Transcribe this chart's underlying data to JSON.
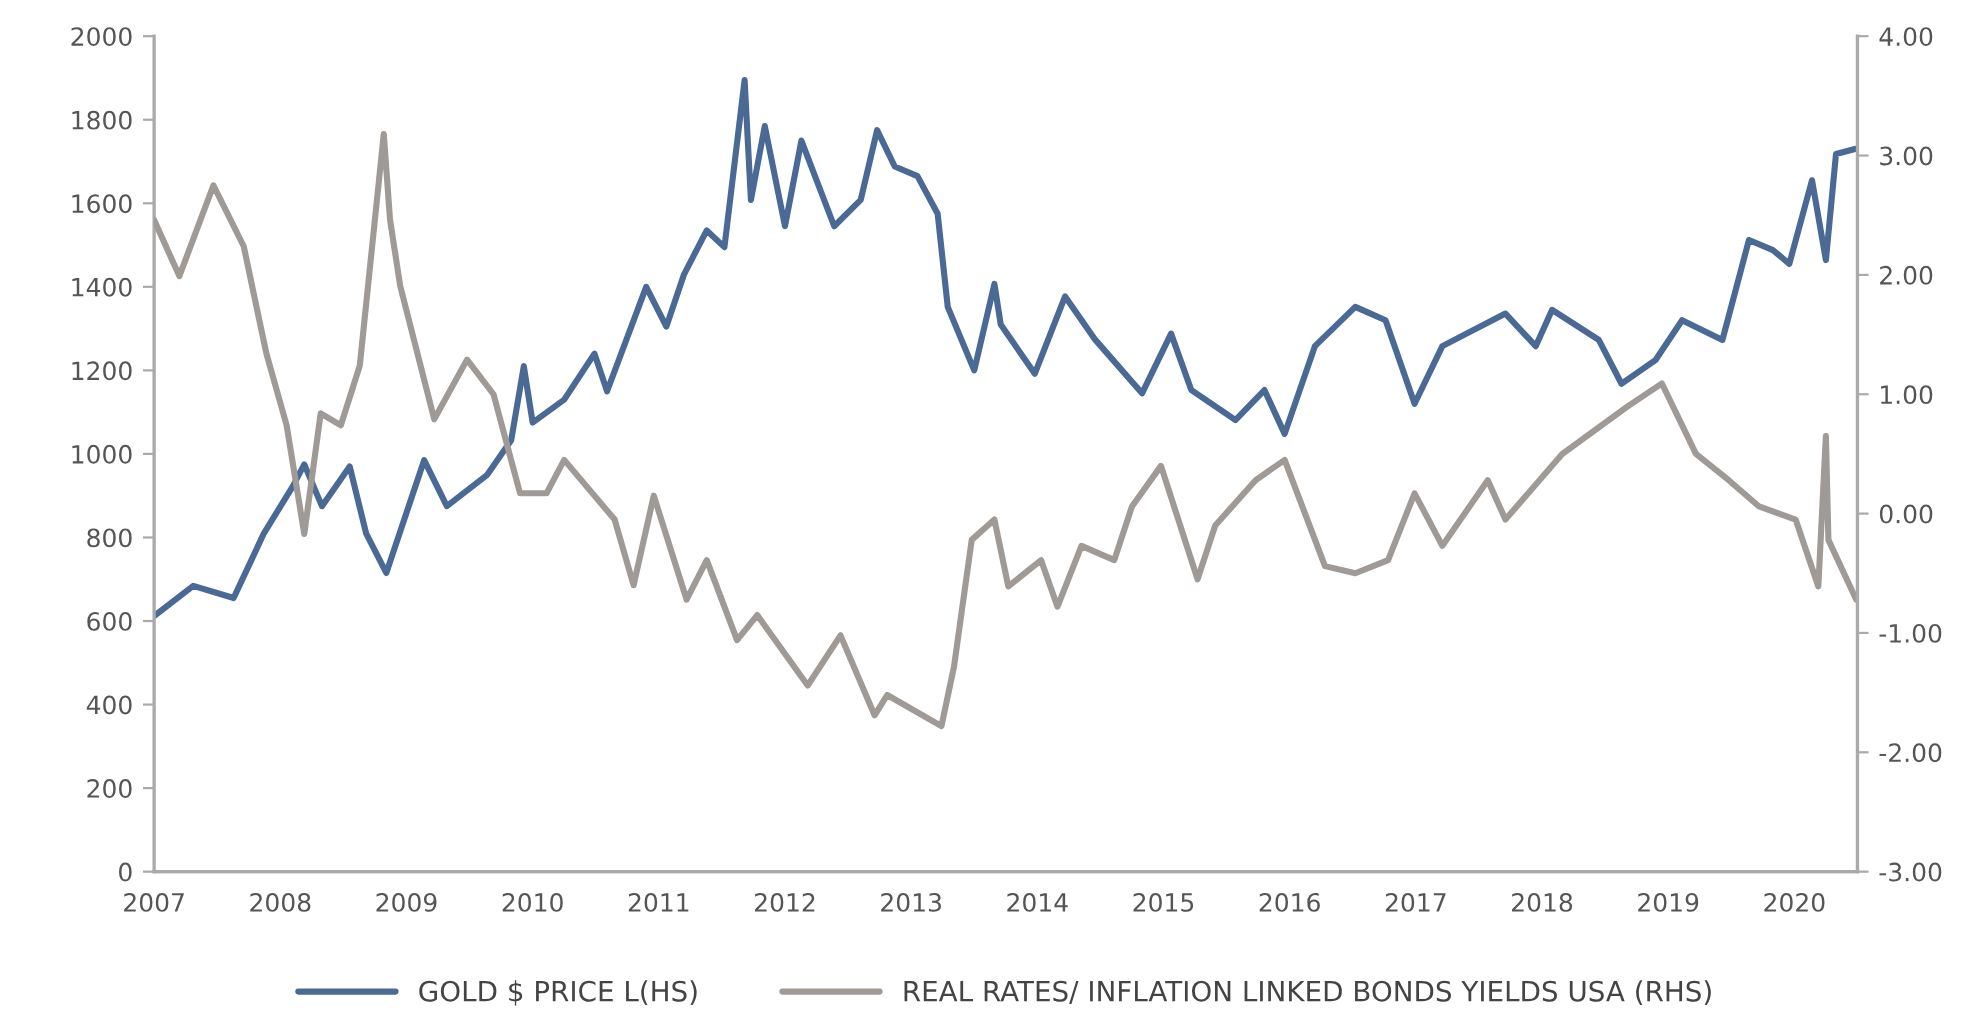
{
  "chart_data": {
    "type": "line",
    "xlim": [
      2007,
      2020.5
    ],
    "xticks": [
      2007,
      2008,
      2009,
      2010,
      2011,
      2012,
      2013,
      2014,
      2015,
      2016,
      2017,
      2018,
      2019,
      2020
    ],
    "ylim": [
      0,
      2000
    ],
    "yticks": [
      0,
      200,
      400,
      600,
      800,
      1000,
      1200,
      1400,
      1600,
      1800,
      2000
    ],
    "y2lim": [
      -3,
      4
    ],
    "y2ticks": [
      {
        "value": -3,
        "label": "-3.00"
      },
      {
        "value": -2,
        "label": "-2.00"
      },
      {
        "value": -1,
        "label": "-1.00"
      },
      {
        "value": 0,
        "label": "0.00"
      },
      {
        "value": 1,
        "label": "1.00"
      },
      {
        "value": 2,
        "label": "2.00"
      },
      {
        "value": 3,
        "label": "3.00"
      },
      {
        "value": 4,
        "label": "4.00"
      }
    ],
    "grid": false,
    "legend": "bottom",
    "line_style": "solid",
    "marker": "none",
    "series": [
      {
        "name": "GOLD $ PRICE L(HS)",
        "color": "#4a6a95",
        "x": [
          2007.0,
          2007.31,
          2007.63,
          2007.87,
          2008.1,
          2008.19,
          2008.33,
          2008.55,
          2008.68,
          2008.84,
          2009.14,
          2009.32,
          2009.64,
          2009.83,
          2009.93,
          2010.0,
          2010.25,
          2010.49,
          2010.59,
          2010.9,
          2011.06,
          2011.2,
          2011.38,
          2011.52,
          2011.68,
          2011.73,
          2011.84,
          2012.0,
          2012.13,
          2012.39,
          2012.6,
          2012.73,
          2012.87,
          2013.05,
          2013.21,
          2013.29,
          2013.5,
          2013.66,
          2013.71,
          2013.98,
          2014.22,
          2014.46,
          2014.83,
          2015.06,
          2015.22,
          2015.57,
          2015.8,
          2015.96,
          2016.2,
          2016.52,
          2016.76,
          2016.99,
          2017.21,
          2017.71,
          2017.95,
          2018.08,
          2018.45,
          2018.63,
          2018.9,
          2019.11,
          2019.43,
          2019.64,
          2019.83,
          2019.96,
          2020.14,
          2020.25,
          2020.33,
          2020.48
        ],
        "values": [
          612,
          684,
          655,
          810,
          923,
          975,
          875,
          970,
          810,
          715,
          985,
          875,
          950,
          1033,
          1210,
          1075,
          1130,
          1240,
          1150,
          1400,
          1305,
          1430,
          1535,
          1495,
          1895,
          1608,
          1785,
          1545,
          1750,
          1545,
          1608,
          1775,
          1688,
          1665,
          1575,
          1352,
          1200,
          1407,
          1310,
          1192,
          1377,
          1273,
          1145,
          1288,
          1153,
          1081,
          1153,
          1048,
          1258,
          1352,
          1320,
          1120,
          1258,
          1336,
          1258,
          1345,
          1273,
          1168,
          1225,
          1320,
          1273,
          1512,
          1488,
          1455,
          1655,
          1464,
          1718,
          1730
        ]
      },
      {
        "name": "REAL RATES/ INFLATION LINKED BONDS YIELDS USA (RHS)",
        "color": "#a09a96",
        "axis": "y2",
        "x": [
          2007.0,
          2007.2,
          2007.47,
          2007.71,
          2007.89,
          2008.05,
          2008.19,
          2008.32,
          2008.48,
          2008.63,
          2008.82,
          2008.87,
          2008.95,
          2009.22,
          2009.48,
          2009.69,
          2009.9,
          2010.11,
          2010.25,
          2010.65,
          2010.8,
          2010.96,
          2011.22,
          2011.38,
          2011.62,
          2011.78,
          2012.18,
          2012.44,
          2012.71,
          2012.81,
          2013.24,
          2013.34,
          2013.48,
          2013.66,
          2013.77,
          2014.03,
          2014.16,
          2014.35,
          2014.61,
          2014.75,
          2014.98,
          2015.27,
          2015.41,
          2015.73,
          2015.96,
          2016.28,
          2016.52,
          2016.78,
          2016.99,
          2017.21,
          2017.57,
          2017.71,
          2018.16,
          2018.68,
          2018.95,
          2019.22,
          2019.48,
          2019.72,
          2020.01,
          2020.19,
          2020.25,
          2020.27,
          2020.49
        ],
        "values": [
          2.46,
          1.99,
          2.75,
          2.24,
          1.34,
          0.74,
          -0.17,
          0.84,
          0.74,
          1.24,
          3.18,
          2.46,
          1.91,
          0.79,
          1.29,
          1.0,
          0.17,
          0.17,
          0.45,
          -0.05,
          -0.6,
          0.15,
          -0.72,
          -0.39,
          -1.06,
          -0.85,
          -1.44,
          -1.02,
          -1.69,
          -1.52,
          -1.78,
          -1.28,
          -0.22,
          -0.05,
          -0.61,
          -0.39,
          -0.78,
          -0.27,
          -0.39,
          0.06,
          0.4,
          -0.55,
          -0.1,
          0.28,
          0.45,
          -0.44,
          -0.5,
          -0.39,
          0.17,
          -0.27,
          0.28,
          -0.05,
          0.5,
          0.9,
          1.09,
          0.5,
          0.28,
          0.06,
          -0.05,
          -0.61,
          0.65,
          -0.22,
          -0.72
        ]
      }
    ]
  }
}
